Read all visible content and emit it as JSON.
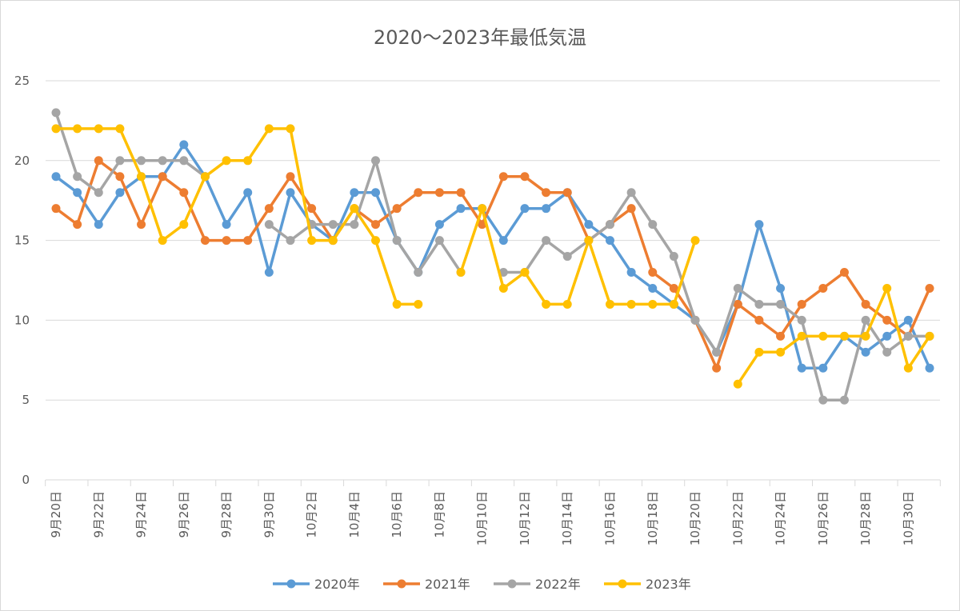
{
  "chart_data": {
    "type": "line",
    "title": "2020～2023年最低気温",
    "xlabel": "",
    "ylabel": "",
    "ylim": [
      0,
      25
    ],
    "yticks": [
      0,
      5,
      10,
      15,
      20,
      25
    ],
    "grid": true,
    "legend_position": "bottom",
    "categories": [
      "9月20日",
      "9月21日",
      "9月22日",
      "9月23日",
      "9月24日",
      "9月25日",
      "9月26日",
      "9月27日",
      "9月28日",
      "9月29日",
      "9月30日",
      "10月1日",
      "10月2日",
      "10月3日",
      "10月4日",
      "10月5日",
      "10月6日",
      "10月7日",
      "10月8日",
      "10月9日",
      "10月10日",
      "10月11日",
      "10月12日",
      "10月13日",
      "10月14日",
      "10月15日",
      "10月16日",
      "10月17日",
      "10月18日",
      "10月19日",
      "10月20日",
      "10月21日",
      "10月22日",
      "10月23日",
      "10月24日",
      "10月25日",
      "10月26日",
      "10月27日",
      "10月28日",
      "10月29日",
      "10月30日",
      "10月31日"
    ],
    "tick_labels": [
      "9月20日",
      "9月22日",
      "9月24日",
      "9月26日",
      "9月28日",
      "9月30日",
      "10月2日",
      "10月4日",
      "10月6日",
      "10月8日",
      "10月10日",
      "10月12日",
      "10月14日",
      "10月16日",
      "10月18日",
      "10月20日",
      "10月22日",
      "10月24日",
      "10月26日",
      "10月28日",
      "10月30日"
    ],
    "series": [
      {
        "name": "2020年",
        "color": "#5B9BD5",
        "values": [
          19,
          18,
          16,
          18,
          19,
          19,
          21,
          19,
          16,
          18,
          13,
          18,
          16,
          15,
          18,
          18,
          15,
          13,
          16,
          17,
          17,
          15,
          17,
          17,
          18,
          16,
          15,
          13,
          12,
          11,
          10,
          8,
          11,
          16,
          12,
          7,
          7,
          9,
          8,
          9,
          10,
          7
        ]
      },
      {
        "name": "2021年",
        "color": "#ED7D31",
        "values": [
          17,
          16,
          20,
          19,
          16,
          19,
          18,
          15,
          15,
          15,
          17,
          19,
          17,
          15,
          17,
          16,
          17,
          18,
          18,
          18,
          16,
          19,
          19,
          18,
          18,
          15,
          16,
          17,
          13,
          12,
          10,
          7,
          11,
          10,
          9,
          11,
          12,
          13,
          11,
          10,
          9,
          12
        ]
      },
      {
        "name": "2022年",
        "color": "#A5A5A5",
        "values": [
          23,
          19,
          18,
          20,
          20,
          20,
          20,
          19,
          null,
          null,
          16,
          15,
          16,
          16,
          16,
          20,
          15,
          13,
          15,
          13,
          null,
          13,
          13,
          15,
          14,
          15,
          16,
          18,
          16,
          14,
          10,
          8,
          12,
          11,
          11,
          10,
          5,
          5,
          10,
          8,
          9,
          9
        ]
      },
      {
        "name": "2023年",
        "color": "#FFC000",
        "values": [
          22,
          22,
          22,
          22,
          19,
          15,
          16,
          19,
          20,
          20,
          22,
          22,
          15,
          15,
          17,
          15,
          11,
          11,
          null,
          13,
          17,
          12,
          13,
          11,
          11,
          15,
          11,
          11,
          11,
          11,
          15,
          null,
          6,
          8,
          8,
          9,
          9,
          9,
          9,
          12,
          7,
          9
        ]
      }
    ]
  }
}
